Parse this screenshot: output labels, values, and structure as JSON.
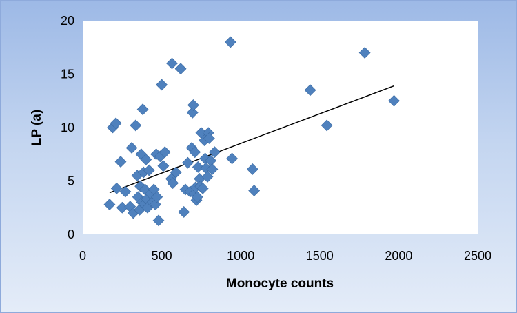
{
  "chart_data": {
    "type": "scatter",
    "title": "",
    "xlabel": "Monocyte counts",
    "ylabel": "LP (a)",
    "xlim": [
      0,
      2500
    ],
    "ylim": [
      0,
      20
    ],
    "xticks": [
      "0",
      "500",
      "1000",
      "1500",
      "2000",
      "2500"
    ],
    "yticks": [
      "0",
      "5",
      "10",
      "15",
      "20"
    ],
    "grid": false,
    "legend": "none",
    "marker_color": "#4f81bd",
    "trendline_color": "#000000",
    "series": [
      {
        "points": [
          [
            170,
            2.8
          ],
          [
            190,
            10.0
          ],
          [
            210,
            10.4
          ],
          [
            215,
            4.3
          ],
          [
            240,
            6.8
          ],
          [
            250,
            2.5
          ],
          [
            270,
            4.0
          ],
          [
            300,
            2.6
          ],
          [
            310,
            8.1
          ],
          [
            320,
            2.0
          ],
          [
            335,
            10.2
          ],
          [
            345,
            5.5
          ],
          [
            350,
            3.5
          ],
          [
            360,
            2.3
          ],
          [
            365,
            4.5
          ],
          [
            370,
            7.5
          ],
          [
            375,
            3.0
          ],
          [
            380,
            11.7
          ],
          [
            385,
            5.8
          ],
          [
            390,
            2.8
          ],
          [
            395,
            4.2
          ],
          [
            400,
            7.0
          ],
          [
            405,
            3.3
          ],
          [
            410,
            2.5
          ],
          [
            420,
            6.0
          ],
          [
            430,
            3.8
          ],
          [
            440,
            3.0
          ],
          [
            450,
            4.2
          ],
          [
            460,
            2.8
          ],
          [
            465,
            7.5
          ],
          [
            470,
            3.5
          ],
          [
            480,
            1.3
          ],
          [
            490,
            7.3
          ],
          [
            500,
            14.0
          ],
          [
            510,
            6.4
          ],
          [
            520,
            7.7
          ],
          [
            560,
            5.2
          ],
          [
            565,
            16.0
          ],
          [
            570,
            4.8
          ],
          [
            590,
            5.8
          ],
          [
            620,
            15.5
          ],
          [
            640,
            2.1
          ],
          [
            650,
            4.2
          ],
          [
            665,
            6.7
          ],
          [
            680,
            4.0
          ],
          [
            690,
            8.1
          ],
          [
            695,
            11.4
          ],
          [
            700,
            12.1
          ],
          [
            705,
            3.8
          ],
          [
            710,
            7.7
          ],
          [
            715,
            4.4
          ],
          [
            720,
            3.2
          ],
          [
            725,
            3.5
          ],
          [
            730,
            6.3
          ],
          [
            740,
            5.2
          ],
          [
            745,
            4.5
          ],
          [
            750,
            9.5
          ],
          [
            760,
            4.3
          ],
          [
            770,
            8.8
          ],
          [
            775,
            7.1
          ],
          [
            780,
            6.2
          ],
          [
            790,
            5.4
          ],
          [
            795,
            9.5
          ],
          [
            800,
            9.0
          ],
          [
            810,
            6.9
          ],
          [
            820,
            6.1
          ],
          [
            835,
            7.7
          ],
          [
            935,
            18.0
          ],
          [
            945,
            7.1
          ],
          [
            1075,
            6.1
          ],
          [
            1085,
            4.1
          ],
          [
            1440,
            13.5
          ],
          [
            1545,
            10.2
          ],
          [
            1785,
            17.0
          ],
          [
            1970,
            12.5
          ]
        ]
      }
    ],
    "trendline": {
      "x": [
        170,
        1970
      ],
      "y": [
        3.9,
        13.9
      ]
    }
  }
}
